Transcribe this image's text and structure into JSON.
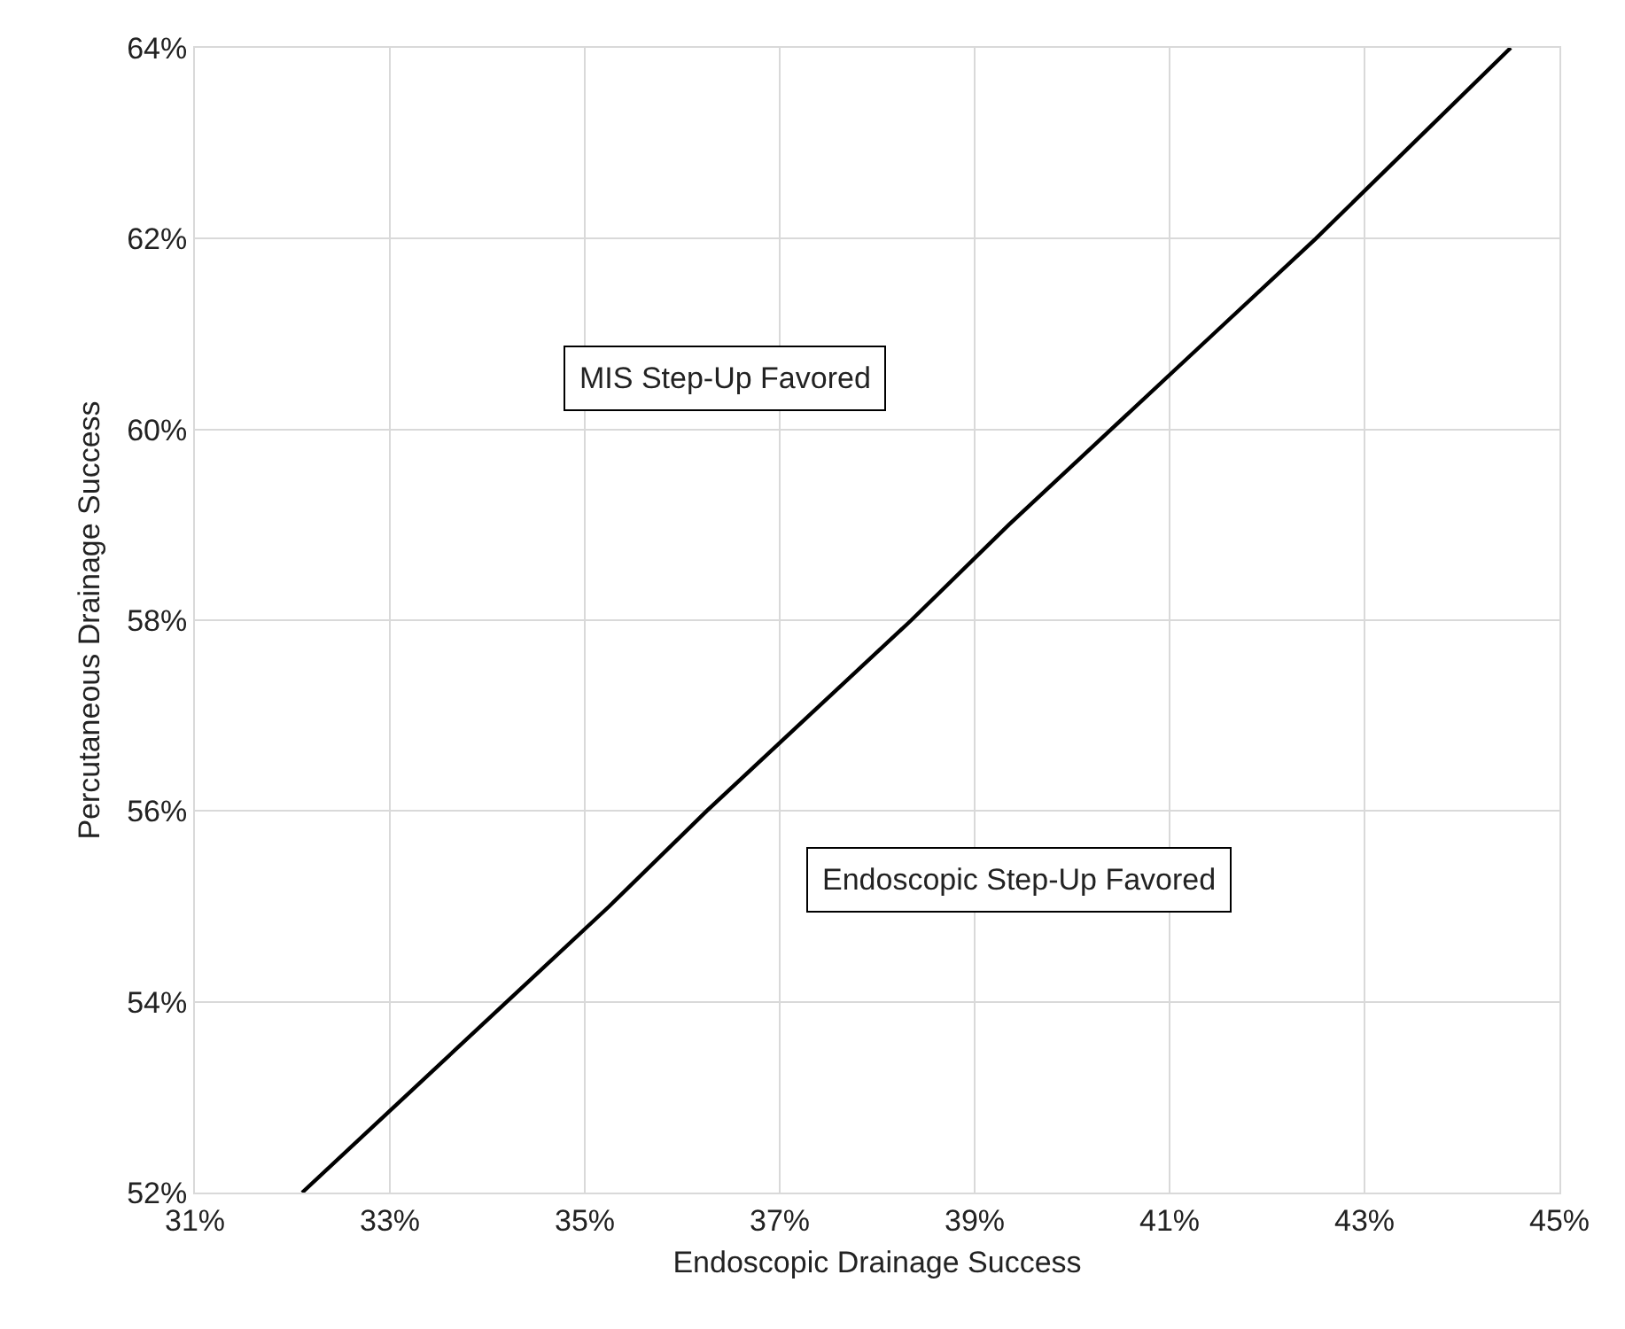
{
  "chart_data": {
    "type": "line",
    "xlabel": "Endoscopic Drainage Success",
    "ylabel": "Percutaneous Drainage Success",
    "x": [
      32.1,
      33.15,
      34.2,
      35.25,
      36.25,
      37.3,
      38.35,
      39.35,
      40.4,
      41.45,
      42.5,
      43.5,
      44.5
    ],
    "series": [
      {
        "color": "#000000",
        "values": [
          52,
          53,
          54,
          55,
          56,
          57,
          58,
          59,
          60,
          61,
          62,
          63,
          64
        ]
      }
    ],
    "xlim": [
      31,
      45
    ],
    "ylim": [
      52,
      64
    ],
    "xticks": [
      {
        "value": 31,
        "label": "31%"
      },
      {
        "value": 33,
        "label": "33%"
      },
      {
        "value": 35,
        "label": "35%"
      },
      {
        "value": 37,
        "label": "37%"
      },
      {
        "value": 39,
        "label": "39%"
      },
      {
        "value": 41,
        "label": "41%"
      },
      {
        "value": 43,
        "label": "43%"
      },
      {
        "value": 45,
        "label": "45%"
      }
    ],
    "yticks": [
      {
        "value": 52,
        "label": "52%"
      },
      {
        "value": 54,
        "label": "54%"
      },
      {
        "value": 56,
        "label": "56%"
      },
      {
        "value": 58,
        "label": "58%"
      },
      {
        "value": 60,
        "label": "60%"
      },
      {
        "value": 62,
        "label": "62%"
      },
      {
        "value": 64,
        "label": "64%"
      }
    ],
    "annotations": [
      "MIS Step-Up Favored",
      "Endoscopic Step-Up Favored"
    ],
    "grid": true,
    "marker": "none",
    "line_style": "solid"
  }
}
